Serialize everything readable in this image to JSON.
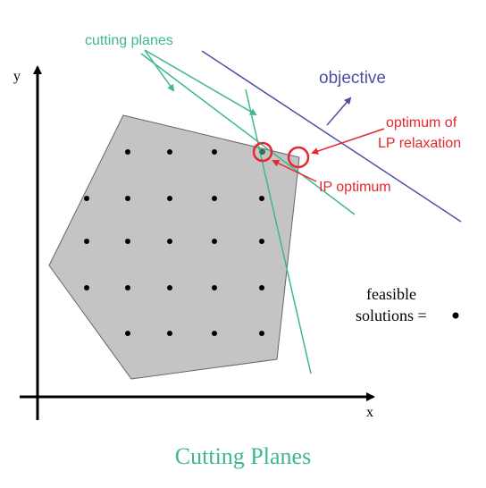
{
  "labels": {
    "y_axis": "y",
    "x_axis": "x",
    "cutting_planes": "cutting planes",
    "objective": "objective",
    "optimum_line1": "optimum of",
    "optimum_line2": "LP relaxation",
    "ip_optimum": "IP optimum",
    "feasible_line1": "feasible",
    "feasible_line2": "solutions =",
    "caption": "Cutting Planes"
  },
  "colors": {
    "cutting_plane": "#3cb88a",
    "objective": "#4b4fa6",
    "optimum": "#e8262d",
    "polygon_fill": "#c4c4c4",
    "caption": "#3cb88a"
  }
}
